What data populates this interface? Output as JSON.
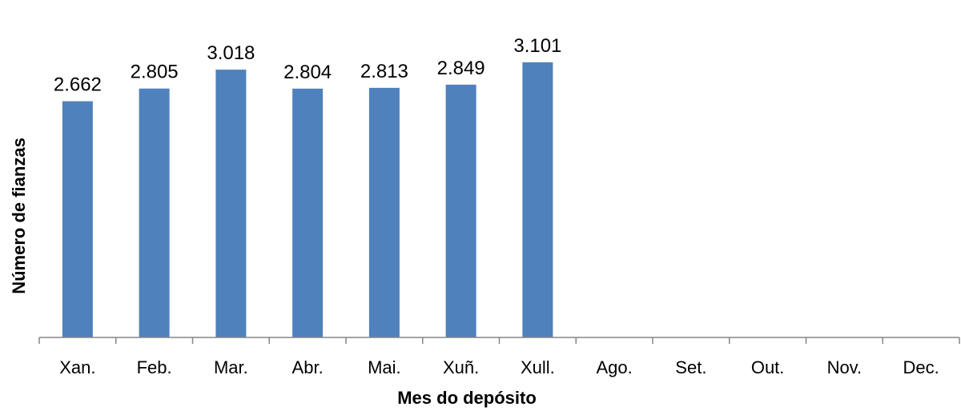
{
  "chart_data": {
    "type": "bar",
    "categories": [
      "Xan.",
      "Feb.",
      "Mar.",
      "Abr.",
      "Mai.",
      "Xuñ.",
      "Xull.",
      "Ago.",
      "Set.",
      "Out.",
      "Nov.",
      "Dec."
    ],
    "values": [
      2662,
      2805,
      3018,
      2804,
      2813,
      2849,
      3101,
      null,
      null,
      null,
      null,
      null
    ],
    "value_labels": [
      "2.662",
      "2.805",
      "3.018",
      "2.804",
      "2.813",
      "2.849",
      "3.101",
      "",
      "",
      "",
      "",
      ""
    ],
    "xlabel": "Mes do depósito",
    "ylabel": "Número de fianzas",
    "ylim": [
      0,
      3100
    ],
    "bar_color": "#4f81bd",
    "axis_color": "#868686",
    "grid": false,
    "legend": false
  }
}
